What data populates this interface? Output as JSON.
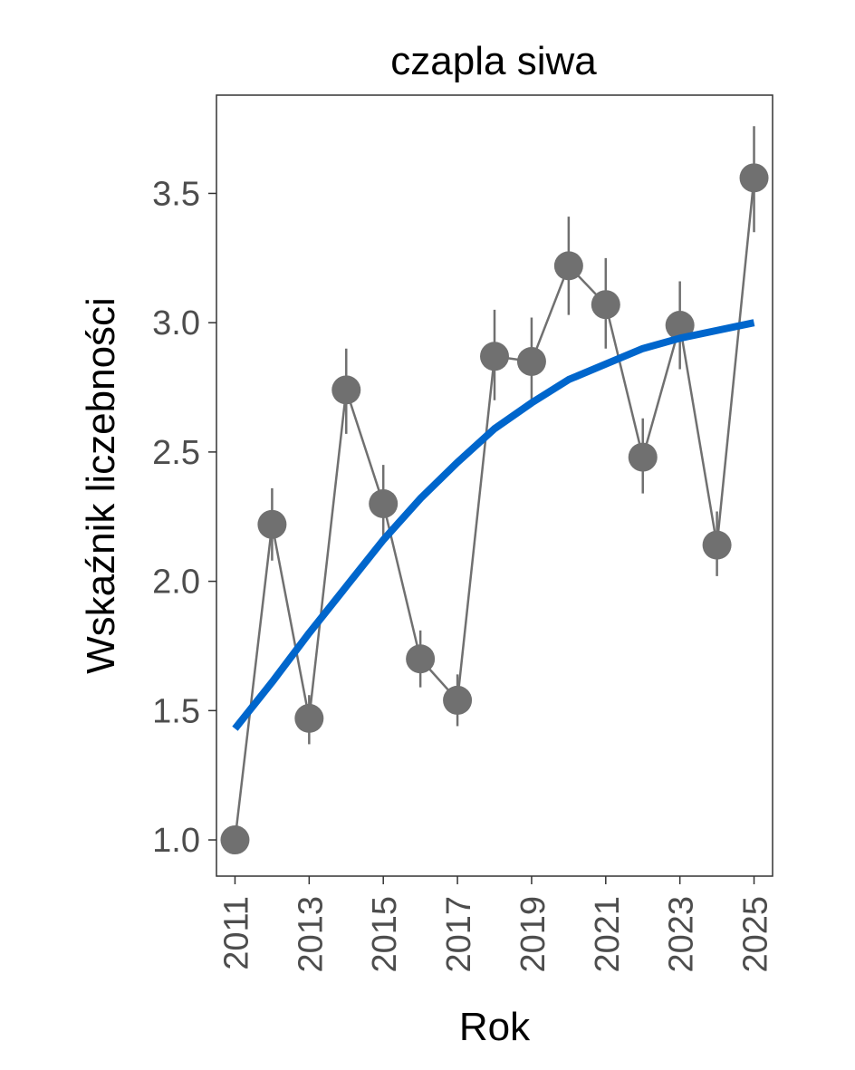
{
  "chart_data": {
    "type": "line",
    "title": "czapla siwa",
    "xlabel": "Rok",
    "ylabel": "Wskaźnik liczebności",
    "xlim": [
      2010.5,
      2025.5
    ],
    "ylim": [
      0.86,
      3.88
    ],
    "x_ticks": [
      2011,
      2013,
      2015,
      2017,
      2019,
      2021,
      2023,
      2025
    ],
    "y_ticks": [
      1.0,
      1.5,
      2.0,
      2.5,
      3.0,
      3.5
    ],
    "y_tick_labels": [
      "1.0",
      "1.5",
      "2.0",
      "2.5",
      "3.0",
      "3.5"
    ],
    "grid": false,
    "series": [
      {
        "style": "points-with-error-bars",
        "color": "#707070",
        "x": [
          2011,
          2012,
          2013,
          2014,
          2015,
          2016,
          2017,
          2018,
          2019,
          2020,
          2021,
          2022,
          2023,
          2024,
          2025
        ],
        "y": [
          1.0,
          2.22,
          1.47,
          2.74,
          2.3,
          1.7,
          1.54,
          2.87,
          2.85,
          3.22,
          3.07,
          2.48,
          2.99,
          2.14,
          3.56
        ],
        "lower": [
          1.0,
          2.08,
          1.37,
          2.57,
          2.15,
          1.59,
          1.44,
          2.7,
          2.68,
          3.03,
          2.9,
          2.34,
          2.82,
          2.02,
          3.35
        ],
        "upper": [
          1.0,
          2.36,
          1.56,
          2.9,
          2.45,
          1.81,
          1.64,
          3.05,
          3.02,
          3.41,
          3.25,
          2.63,
          3.16,
          2.27,
          3.76
        ]
      },
      {
        "style": "trend-line",
        "color": "#0066cc",
        "x": [
          2011,
          2012,
          2013,
          2014,
          2015,
          2016,
          2017,
          2018,
          2019,
          2020,
          2021,
          2022,
          2023,
          2024,
          2025
        ],
        "y": [
          1.43,
          1.61,
          1.8,
          1.98,
          2.16,
          2.32,
          2.46,
          2.59,
          2.69,
          2.78,
          2.84,
          2.9,
          2.94,
          2.97,
          3.0
        ]
      }
    ]
  }
}
